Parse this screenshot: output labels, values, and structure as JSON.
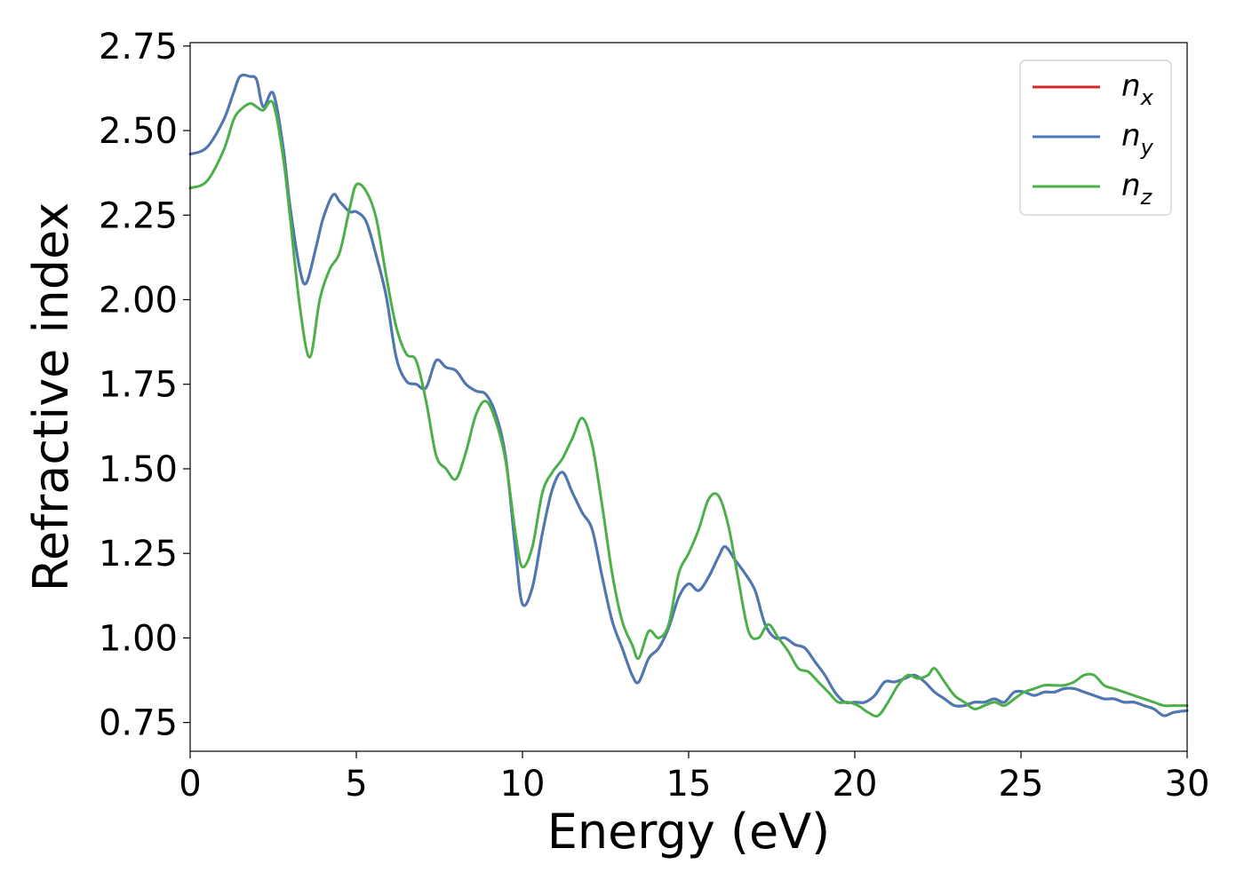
{
  "chart_data": {
    "type": "line",
    "title": "",
    "xlabel": "Energy (eV)",
    "ylabel": "Refractive index",
    "xlim": [
      0,
      30
    ],
    "ylim": [
      0.665,
      2.76
    ],
    "x_ticks": [
      0,
      5,
      10,
      15,
      20,
      25,
      30
    ],
    "y_ticks": [
      0.75,
      1.0,
      1.25,
      1.5,
      1.75,
      2.0,
      2.25,
      2.5,
      2.75
    ],
    "x_tick_labels": [
      "0",
      "5",
      "10",
      "15",
      "20",
      "25",
      "30"
    ],
    "y_tick_labels": [
      "0.75",
      "1.00",
      "1.25",
      "1.50",
      "1.75",
      "2.00",
      "2.25",
      "2.50",
      "2.75"
    ],
    "grid": false,
    "legend_position": "top-right",
    "series": [
      {
        "name": "n_x",
        "legend_base": "n",
        "legend_sub": "x",
        "color": "#d62728",
        "hidden_under": "n_y",
        "x": [
          0,
          0.5,
          1.0,
          1.3,
          1.5,
          1.8,
          2.0,
          2.2,
          2.5,
          2.8,
          3.0,
          3.3,
          3.5,
          3.8,
          4.0,
          4.3,
          4.5,
          4.8,
          5.0,
          5.3,
          5.6,
          5.9,
          6.2,
          6.5,
          6.8,
          7.1,
          7.4,
          7.7,
          8.0,
          8.3,
          8.6,
          8.9,
          9.2,
          9.5,
          9.8,
          10.0,
          10.3,
          10.6,
          10.9,
          11.2,
          11.5,
          11.8,
          12.1,
          12.4,
          12.7,
          13.0,
          13.3,
          13.5,
          13.8,
          14.1,
          14.4,
          14.7,
          15.0,
          15.3,
          15.6,
          15.9,
          16.1,
          16.4,
          16.7,
          17.0,
          17.3,
          17.6,
          17.9,
          18.2,
          18.5,
          18.8,
          19.1,
          19.4,
          19.7,
          20.0,
          20.3,
          20.6,
          20.9,
          21.2,
          21.5,
          21.8,
          22.1,
          22.4,
          22.7,
          23.0,
          23.3,
          23.6,
          23.9,
          24.2,
          24.5,
          24.8,
          25.1,
          25.4,
          25.7,
          26.0,
          26.3,
          26.6,
          26.9,
          27.2,
          27.5,
          27.8,
          28.1,
          28.4,
          28.7,
          29.0,
          29.3,
          29.6,
          30.0
        ],
        "y": [
          2.43,
          2.45,
          2.53,
          2.61,
          2.66,
          2.66,
          2.65,
          2.57,
          2.61,
          2.45,
          2.28,
          2.09,
          2.05,
          2.16,
          2.24,
          2.31,
          2.29,
          2.26,
          2.26,
          2.23,
          2.13,
          2.01,
          1.83,
          1.76,
          1.75,
          1.74,
          1.82,
          1.8,
          1.79,
          1.75,
          1.73,
          1.72,
          1.66,
          1.53,
          1.25,
          1.1,
          1.15,
          1.31,
          1.44,
          1.49,
          1.43,
          1.37,
          1.32,
          1.18,
          1.05,
          0.97,
          0.89,
          0.87,
          0.94,
          0.97,
          1.03,
          1.12,
          1.16,
          1.14,
          1.18,
          1.24,
          1.27,
          1.23,
          1.19,
          1.14,
          1.04,
          1.0,
          1.0,
          0.98,
          0.97,
          0.93,
          0.89,
          0.84,
          0.81,
          0.81,
          0.81,
          0.83,
          0.87,
          0.87,
          0.88,
          0.89,
          0.87,
          0.84,
          0.82,
          0.8,
          0.8,
          0.81,
          0.81,
          0.82,
          0.81,
          0.84,
          0.84,
          0.83,
          0.84,
          0.84,
          0.85,
          0.85,
          0.84,
          0.83,
          0.82,
          0.82,
          0.81,
          0.81,
          0.8,
          0.79,
          0.77,
          0.78,
          0.785
        ]
      },
      {
        "name": "n_y",
        "legend_base": "n",
        "legend_sub": "y",
        "color": "#4a7ab5",
        "x": [
          0,
          0.5,
          1.0,
          1.3,
          1.5,
          1.8,
          2.0,
          2.2,
          2.5,
          2.8,
          3.0,
          3.3,
          3.5,
          3.8,
          4.0,
          4.3,
          4.5,
          4.8,
          5.0,
          5.3,
          5.6,
          5.9,
          6.2,
          6.5,
          6.8,
          7.1,
          7.4,
          7.7,
          8.0,
          8.3,
          8.6,
          8.9,
          9.2,
          9.5,
          9.8,
          10.0,
          10.3,
          10.6,
          10.9,
          11.2,
          11.5,
          11.8,
          12.1,
          12.4,
          12.7,
          13.0,
          13.3,
          13.5,
          13.8,
          14.1,
          14.4,
          14.7,
          15.0,
          15.3,
          15.6,
          15.9,
          16.1,
          16.4,
          16.7,
          17.0,
          17.3,
          17.6,
          17.9,
          18.2,
          18.5,
          18.8,
          19.1,
          19.4,
          19.7,
          20.0,
          20.3,
          20.6,
          20.9,
          21.2,
          21.5,
          21.8,
          22.1,
          22.4,
          22.7,
          23.0,
          23.3,
          23.6,
          23.9,
          24.2,
          24.5,
          24.8,
          25.1,
          25.4,
          25.7,
          26.0,
          26.3,
          26.6,
          26.9,
          27.2,
          27.5,
          27.8,
          28.1,
          28.4,
          28.7,
          29.0,
          29.3,
          29.6,
          30.0
        ],
        "y": [
          2.43,
          2.45,
          2.53,
          2.61,
          2.66,
          2.66,
          2.65,
          2.57,
          2.61,
          2.45,
          2.28,
          2.09,
          2.05,
          2.16,
          2.24,
          2.31,
          2.29,
          2.26,
          2.26,
          2.23,
          2.13,
          2.01,
          1.83,
          1.76,
          1.75,
          1.74,
          1.82,
          1.8,
          1.79,
          1.75,
          1.73,
          1.72,
          1.66,
          1.53,
          1.25,
          1.1,
          1.15,
          1.31,
          1.44,
          1.49,
          1.43,
          1.37,
          1.32,
          1.18,
          1.05,
          0.97,
          0.89,
          0.87,
          0.94,
          0.97,
          1.03,
          1.12,
          1.16,
          1.14,
          1.18,
          1.24,
          1.27,
          1.23,
          1.19,
          1.14,
          1.04,
          1.0,
          1.0,
          0.98,
          0.97,
          0.93,
          0.89,
          0.84,
          0.81,
          0.81,
          0.81,
          0.83,
          0.87,
          0.87,
          0.88,
          0.89,
          0.87,
          0.84,
          0.82,
          0.8,
          0.8,
          0.81,
          0.81,
          0.82,
          0.81,
          0.84,
          0.84,
          0.83,
          0.84,
          0.84,
          0.85,
          0.85,
          0.84,
          0.83,
          0.82,
          0.82,
          0.81,
          0.81,
          0.8,
          0.79,
          0.77,
          0.78,
          0.785
        ]
      },
      {
        "name": "n_z",
        "legend_base": "n",
        "legend_sub": "z",
        "color": "#4daf4a",
        "x": [
          0,
          0.5,
          1.0,
          1.3,
          1.5,
          1.8,
          2.0,
          2.2,
          2.5,
          2.8,
          3.0,
          3.3,
          3.6,
          3.9,
          4.2,
          4.5,
          4.8,
          5.0,
          5.3,
          5.6,
          5.9,
          6.2,
          6.5,
          6.8,
          7.1,
          7.4,
          7.7,
          8.0,
          8.3,
          8.6,
          8.9,
          9.2,
          9.5,
          9.8,
          10.0,
          10.3,
          10.6,
          10.9,
          11.2,
          11.5,
          11.8,
          12.1,
          12.4,
          12.7,
          13.0,
          13.3,
          13.5,
          13.8,
          14.1,
          14.4,
          14.7,
          15.0,
          15.3,
          15.6,
          15.9,
          16.2,
          16.5,
          16.8,
          17.1,
          17.4,
          17.7,
          18.0,
          18.3,
          18.6,
          18.9,
          19.2,
          19.5,
          19.8,
          20.1,
          20.4,
          20.7,
          21.0,
          21.3,
          21.6,
          21.9,
          22.2,
          22.4,
          22.7,
          23.0,
          23.3,
          23.6,
          23.9,
          24.2,
          24.5,
          24.8,
          25.1,
          25.4,
          25.7,
          26.0,
          26.3,
          26.6,
          26.9,
          27.2,
          27.5,
          27.8,
          28.1,
          28.4,
          28.7,
          29.0,
          29.3,
          29.6,
          30.0
        ],
        "y": [
          2.33,
          2.35,
          2.44,
          2.53,
          2.56,
          2.58,
          2.57,
          2.56,
          2.58,
          2.42,
          2.25,
          1.98,
          1.83,
          2.0,
          2.09,
          2.14,
          2.27,
          2.34,
          2.32,
          2.24,
          2.07,
          1.92,
          1.84,
          1.82,
          1.7,
          1.54,
          1.5,
          1.47,
          1.55,
          1.66,
          1.7,
          1.64,
          1.52,
          1.3,
          1.21,
          1.27,
          1.43,
          1.49,
          1.53,
          1.59,
          1.65,
          1.57,
          1.39,
          1.19,
          1.05,
          0.98,
          0.94,
          1.02,
          1.0,
          1.04,
          1.19,
          1.25,
          1.32,
          1.41,
          1.42,
          1.33,
          1.17,
          1.02,
          1.0,
          1.04,
          1.0,
          0.96,
          0.91,
          0.9,
          0.87,
          0.84,
          0.81,
          0.81,
          0.8,
          0.78,
          0.77,
          0.81,
          0.86,
          0.89,
          0.88,
          0.89,
          0.91,
          0.87,
          0.83,
          0.81,
          0.79,
          0.8,
          0.81,
          0.8,
          0.82,
          0.84,
          0.85,
          0.86,
          0.86,
          0.86,
          0.87,
          0.89,
          0.89,
          0.86,
          0.85,
          0.84,
          0.83,
          0.82,
          0.81,
          0.8,
          0.8,
          0.8
        ]
      }
    ]
  }
}
